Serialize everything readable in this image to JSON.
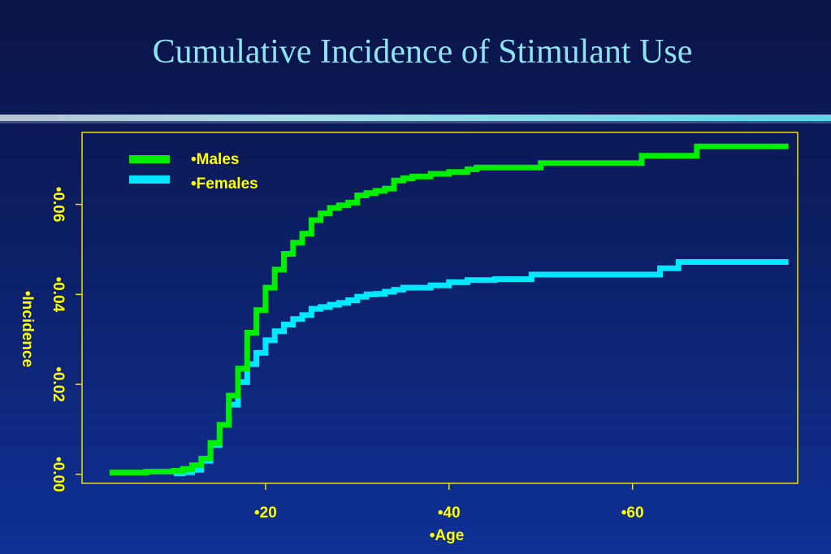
{
  "slide": {
    "title": "Cumulative Incidence of Stimulant Use"
  },
  "colors": {
    "males": "#00ee00",
    "females": "#00e8ff",
    "axis_text": "#ffff00",
    "frame": "#f0e000"
  },
  "chart_data": {
    "type": "line",
    "xlabel": "•Age",
    "ylabel": "•Incidence",
    "xlim": [
      0,
      78
    ],
    "ylim": [
      -0.002,
      0.076
    ],
    "x_ticks": [
      20,
      40,
      60
    ],
    "x_tick_labels": [
      "•20",
      "•40",
      "•60"
    ],
    "y_ticks": [
      0.0,
      0.02,
      0.04,
      0.06
    ],
    "y_tick_labels": [
      "•0.00",
      "•0.02",
      "•0.04",
      "•0.06"
    ],
    "grid": false,
    "legend": "top-left",
    "series": [
      {
        "name": "•Males",
        "color": "#00ee00",
        "step": true,
        "points": [
          [
            3,
            0.0004
          ],
          [
            7,
            0.0006
          ],
          [
            10,
            0.0008
          ],
          [
            11,
            0.0012
          ],
          [
            12,
            0.002
          ],
          [
            13,
            0.0035
          ],
          [
            14,
            0.007
          ],
          [
            15,
            0.011
          ],
          [
            16,
            0.0175
          ],
          [
            17,
            0.0235
          ],
          [
            18,
            0.0315
          ],
          [
            19,
            0.0365
          ],
          [
            20,
            0.0415
          ],
          [
            21,
            0.0455
          ],
          [
            22,
            0.049
          ],
          [
            23,
            0.0515
          ],
          [
            24,
            0.0535
          ],
          [
            25,
            0.0565
          ],
          [
            26,
            0.058
          ],
          [
            27,
            0.0592
          ],
          [
            28,
            0.0598
          ],
          [
            29,
            0.0604
          ],
          [
            30,
            0.062
          ],
          [
            31,
            0.0625
          ],
          [
            32,
            0.063
          ],
          [
            33,
            0.0635
          ],
          [
            34,
            0.0653
          ],
          [
            35,
            0.0658
          ],
          [
            36,
            0.0662
          ],
          [
            38,
            0.0668
          ],
          [
            40,
            0.0672
          ],
          [
            42,
            0.0678
          ],
          [
            43,
            0.0682
          ],
          [
            50,
            0.0692
          ],
          [
            61,
            0.0708
          ],
          [
            67,
            0.0729
          ],
          [
            77,
            0.0729
          ]
        ]
      },
      {
        "name": "•Females",
        "color": "#00e8ff",
        "step": true,
        "points": [
          [
            10,
            0.0002
          ],
          [
            11,
            0.0005
          ],
          [
            12,
            0.001
          ],
          [
            13,
            0.003
          ],
          [
            14,
            0.0065
          ],
          [
            15,
            0.011
          ],
          [
            16,
            0.0155
          ],
          [
            17,
            0.0205
          ],
          [
            18,
            0.0245
          ],
          [
            19,
            0.027
          ],
          [
            20,
            0.0298
          ],
          [
            21,
            0.0318
          ],
          [
            22,
            0.0333
          ],
          [
            23,
            0.0345
          ],
          [
            24,
            0.0354
          ],
          [
            25,
            0.0368
          ],
          [
            26,
            0.0372
          ],
          [
            27,
            0.0377
          ],
          [
            28,
            0.0381
          ],
          [
            29,
            0.0387
          ],
          [
            30,
            0.0395
          ],
          [
            31,
            0.04
          ],
          [
            32,
            0.0401
          ],
          [
            33,
            0.0406
          ],
          [
            34,
            0.041
          ],
          [
            35,
            0.0415
          ],
          [
            38,
            0.042
          ],
          [
            40,
            0.0427
          ],
          [
            42,
            0.0432
          ],
          [
            45,
            0.0434
          ],
          [
            49,
            0.0444
          ],
          [
            63,
            0.0458
          ],
          [
            65,
            0.0472
          ],
          [
            77,
            0.0472
          ]
        ]
      }
    ]
  }
}
